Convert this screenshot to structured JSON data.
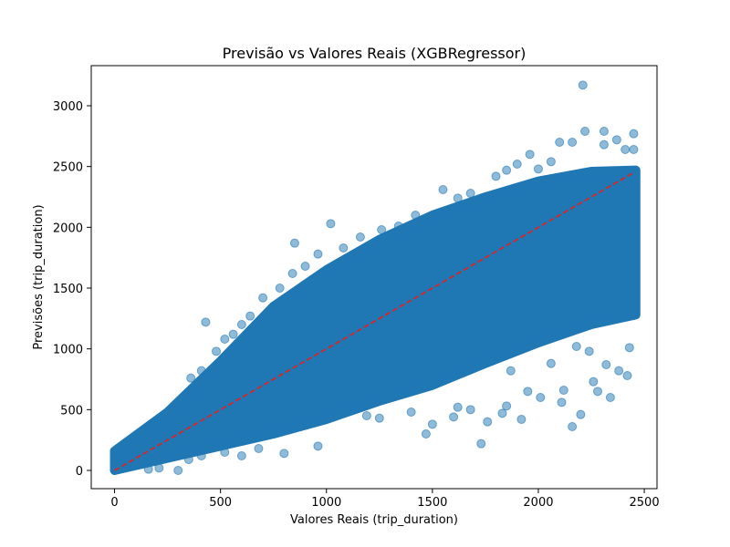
{
  "chart_data": {
    "type": "scatter",
    "title": "Previsão vs Valores Reais (XGBRegressor)",
    "xlabel": "Valores Reais (trip_duration)",
    "ylabel": "Previsões (trip_duration)",
    "xlim": [
      -110,
      2560
    ],
    "ylim": [
      -150,
      3330
    ],
    "xticks": [
      0,
      500,
      1000,
      1500,
      2000,
      2500
    ],
    "yticks": [
      0,
      500,
      1000,
      1500,
      2000,
      2500,
      3000
    ],
    "grid": false,
    "colors": {
      "points": "#1f77b4",
      "reference_line": "#d62728"
    },
    "reference_line": {
      "x": [
        0,
        2450
      ],
      "y": [
        0,
        2450
      ],
      "style": "dashed"
    },
    "density": {
      "description": "dense point cloud along the diagonal",
      "upper_envelope": [
        [
          0,
          160
        ],
        [
          250,
          480
        ],
        [
          500,
          900
        ],
        [
          750,
          1350
        ],
        [
          1000,
          1650
        ],
        [
          1250,
          1900
        ],
        [
          1500,
          2100
        ],
        [
          1750,
          2250
        ],
        [
          2000,
          2380
        ],
        [
          2250,
          2460
        ],
        [
          2460,
          2470
        ]
      ],
      "lower_envelope": [
        [
          0,
          0
        ],
        [
          250,
          100
        ],
        [
          500,
          200
        ],
        [
          750,
          300
        ],
        [
          1000,
          420
        ],
        [
          1250,
          570
        ],
        [
          1500,
          700
        ],
        [
          1750,
          880
        ],
        [
          2000,
          1050
        ],
        [
          2250,
          1200
        ],
        [
          2460,
          1280
        ]
      ]
    },
    "outliers": [
      [
        2210,
        3170
      ],
      [
        2220,
        2790
      ],
      [
        2310,
        2790
      ],
      [
        2450,
        2770
      ],
      [
        2160,
        2700
      ],
      [
        2100,
        2700
      ],
      [
        1550,
        2310
      ],
      [
        1020,
        2030
      ],
      [
        850,
        1870
      ],
      [
        430,
        1220
      ],
      [
        1730,
        220
      ],
      [
        2200,
        460
      ],
      [
        2340,
        600
      ],
      [
        2160,
        360
      ],
      [
        2280,
        650
      ],
      [
        1830,
        470
      ],
      [
        1920,
        420
      ],
      [
        2420,
        780
      ],
      [
        1680,
        500
      ],
      [
        1500,
        380
      ],
      [
        2060,
        880
      ],
      [
        2260,
        730
      ],
      [
        1600,
        440
      ],
      [
        2380,
        820
      ],
      [
        1470,
        300
      ],
      [
        1250,
        430
      ],
      [
        1950,
        650
      ],
      [
        2110,
        560
      ],
      [
        1400,
        480
      ],
      [
        1870,
        820
      ],
      [
        2320,
        870
      ],
      [
        2180,
        1020
      ],
      [
        1190,
        450
      ],
      [
        2120,
        660
      ],
      [
        1760,
        400
      ],
      [
        2430,
        1010
      ],
      [
        1620,
        520
      ],
      [
        1850,
        530
      ],
      [
        2010,
        600
      ],
      [
        2240,
        980
      ],
      [
        160,
        10
      ],
      [
        210,
        20
      ],
      [
        300,
        0
      ],
      [
        350,
        90
      ],
      [
        410,
        120
      ],
      [
        520,
        150
      ],
      [
        600,
        120
      ],
      [
        680,
        180
      ],
      [
        800,
        140
      ],
      [
        960,
        200
      ],
      [
        100,
        150
      ],
      [
        150,
        260
      ],
      [
        200,
        330
      ],
      [
        220,
        390
      ],
      [
        280,
        490
      ],
      [
        340,
        620
      ],
      [
        360,
        760
      ],
      [
        410,
        820
      ],
      [
        480,
        980
      ],
      [
        520,
        1080
      ],
      [
        560,
        1120
      ],
      [
        600,
        1200
      ],
      [
        640,
        1270
      ],
      [
        700,
        1420
      ],
      [
        780,
        1500
      ],
      [
        840,
        1620
      ],
      [
        900,
        1680
      ],
      [
        960,
        1780
      ],
      [
        1080,
        1830
      ],
      [
        1160,
        1920
      ],
      [
        1260,
        1980
      ],
      [
        1340,
        2010
      ],
      [
        1420,
        2100
      ],
      [
        1620,
        2240
      ],
      [
        1680,
        2280
      ],
      [
        1800,
        2420
      ],
      [
        1850,
        2470
      ],
      [
        1900,
        2520
      ],
      [
        1960,
        2600
      ],
      [
        2060,
        2540
      ],
      [
        2310,
        2680
      ],
      [
        2370,
        2720
      ],
      [
        2410,
        2640
      ],
      [
        2450,
        2640
      ],
      [
        2000,
        2480
      ]
    ]
  }
}
